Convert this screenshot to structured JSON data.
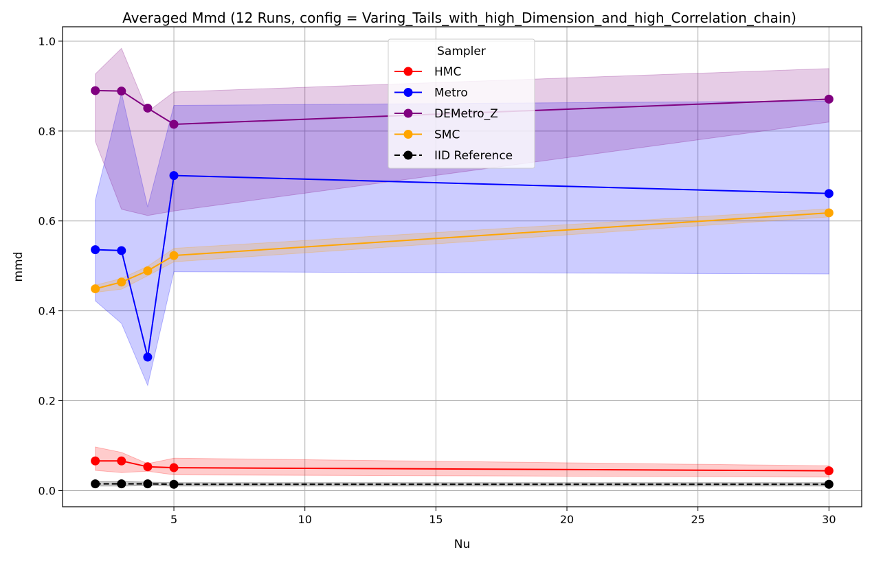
{
  "chart_data": {
    "type": "line",
    "title": "Averaged Mmd (12 Runs, config = Varing_Tails_with_high_Dimension_and_high_Correlation_chain)",
    "xlabel": "Nu",
    "ylabel": "mmd",
    "xlim": [
      0.75,
      31.25
    ],
    "ylim": [
      -0.036,
      1.032
    ],
    "xticks": [
      5,
      10,
      15,
      20,
      25,
      30
    ],
    "yticks": [
      0.0,
      0.2,
      0.4,
      0.6,
      0.8,
      1.0
    ],
    "xtick_labels": [
      "5",
      "10",
      "15",
      "20",
      "25",
      "30"
    ],
    "ytick_labels": [
      "0.0",
      "0.2",
      "0.4",
      "0.6",
      "0.8",
      "1.0"
    ],
    "grid": true,
    "legend": {
      "title": "Sampler",
      "placement": "upper-center"
    },
    "x": [
      2,
      3,
      4,
      5,
      30
    ],
    "series": [
      {
        "name": "HMC",
        "color": "#ff0000",
        "linestyle": "solid",
        "values": [
          0.066,
          0.066,
          0.053,
          0.051,
          0.044
        ],
        "lower": [
          0.045,
          0.04,
          0.043,
          0.035,
          0.03
        ],
        "upper": [
          0.097,
          0.085,
          0.06,
          0.072,
          0.055
        ]
      },
      {
        "name": "Metro",
        "color": "#0000ff",
        "linestyle": "solid",
        "values": [
          0.536,
          0.534,
          0.297,
          0.701,
          0.661
        ],
        "lower": [
          0.422,
          0.372,
          0.234,
          0.487,
          0.482
        ],
        "upper": [
          0.646,
          0.885,
          0.631,
          0.857,
          0.867
        ]
      },
      {
        "name": "DEMetro_Z",
        "color": "#800080",
        "linestyle": "solid",
        "values": [
          0.89,
          0.889,
          0.851,
          0.815,
          0.871
        ],
        "lower": [
          0.777,
          0.626,
          0.612,
          0.622,
          0.82
        ],
        "upper": [
          0.927,
          0.984,
          0.843,
          0.887,
          0.939
        ]
      },
      {
        "name": "SMC",
        "color": "#ffa500",
        "linestyle": "solid",
        "values": [
          0.449,
          0.464,
          0.489,
          0.523,
          0.618
        ],
        "lower": [
          0.441,
          0.448,
          0.478,
          0.509,
          0.609
        ],
        "upper": [
          0.457,
          0.472,
          0.499,
          0.539,
          0.627
        ]
      },
      {
        "name": "IID Reference",
        "color": "#000000",
        "linestyle": "dashed",
        "values": [
          0.015,
          0.015,
          0.015,
          0.014,
          0.014
        ],
        "lower": [
          0.01,
          0.01,
          0.011,
          0.01,
          0.01
        ],
        "upper": [
          0.02,
          0.02,
          0.019,
          0.018,
          0.018
        ]
      }
    ]
  }
}
